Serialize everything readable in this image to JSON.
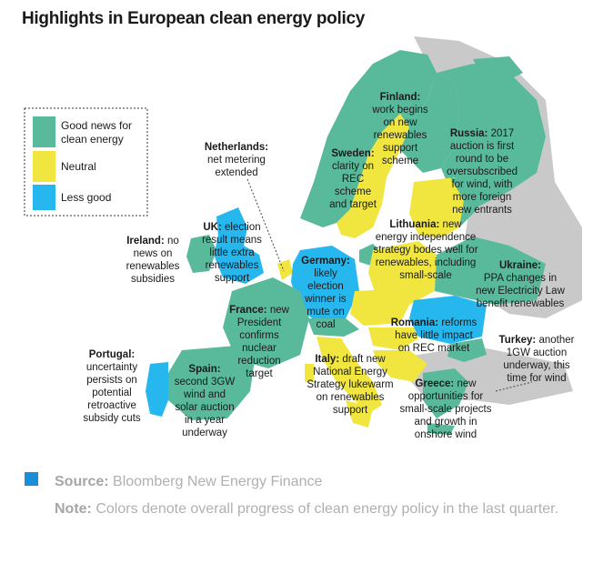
{
  "title": "Highlights in European clean energy policy",
  "colors": {
    "good": "#58b99b",
    "neutral": "#f1e640",
    "less_good": "#27b7ef",
    "non_eu": "#c9c9c9",
    "accent": "#1a8fd8"
  },
  "legend": {
    "good": "Good news for clean energy",
    "good_lines": [
      "Good news for",
      "clean energy"
    ],
    "neutral": "Neutral",
    "less_good": "Less good"
  },
  "callouts": {
    "finland": {
      "name": "Finland:",
      "text": [
        "work begins",
        "on new",
        "renewables",
        "support",
        "scheme"
      ]
    },
    "russia": {
      "name": "Russia:",
      "lead": "2017",
      "text": [
        "auction is first",
        "round to be",
        "oversubscribed",
        "for wind, with",
        "more foreign",
        "new entrants"
      ]
    },
    "netherlands": {
      "name": "Netherlands:",
      "text": [
        "net metering",
        "extended"
      ]
    },
    "sweden": {
      "name": "Sweden:",
      "text": [
        "clarity on",
        "REC",
        "scheme",
        "and target"
      ]
    },
    "lithuania": {
      "name": "Lithuania:",
      "lead": "new",
      "text": [
        "energy independence",
        "strategy bodes well for",
        "renewables, including",
        "small-scale"
      ]
    },
    "ireland": {
      "name": "Ireland:",
      "lead": "no",
      "text": [
        "news on",
        "renewables",
        "subsidies"
      ]
    },
    "uk": {
      "name": "UK:",
      "lead": "election",
      "text": [
        "result means",
        "little extra",
        "renewables",
        "support"
      ]
    },
    "germany": {
      "name": "Germany:",
      "text": [
        "likely",
        "election",
        "winner is",
        "mute on",
        "coal"
      ]
    },
    "ukraine": {
      "name": "Ukraine:",
      "text": [
        "PPA changes in",
        "new Electricity Law",
        "benefit renewables"
      ]
    },
    "france": {
      "name": "France:",
      "lead": "new",
      "text": [
        "President",
        "confirms",
        "nuclear",
        "reduction",
        "target"
      ]
    },
    "romania": {
      "name": "Romania:",
      "lead": "reforms",
      "text": [
        "have little impact",
        "on REC market"
      ]
    },
    "turkey": {
      "name": "Turkey:",
      "lead": "another",
      "text": [
        "1GW auction",
        "underway, this",
        "time for wind"
      ]
    },
    "portugal": {
      "name": "Portugal:",
      "text": [
        "uncertainty",
        "persists on",
        "potential",
        "retroactive",
        "subsidy cuts"
      ]
    },
    "spain": {
      "name": "Spain:",
      "text": [
        "second 3GW",
        "wind and",
        "solar auction",
        "in a year",
        "underway"
      ]
    },
    "italy": {
      "name": "Italy:",
      "lead": "draft new",
      "text": [
        "National Energy",
        "Strategy lukewarm",
        "on renewables",
        "support"
      ]
    },
    "greece": {
      "name": "Greece:",
      "lead": "new",
      "text": [
        "opportunities for",
        "small-scale projects",
        "and growth in",
        "onshore wind"
      ]
    }
  },
  "footer": {
    "source_label": "Source:",
    "source_text": "Bloomberg New Energy Finance",
    "note_label": "Note:",
    "note_text": "Colors denote overall progress of clean energy policy in the last quarter."
  }
}
